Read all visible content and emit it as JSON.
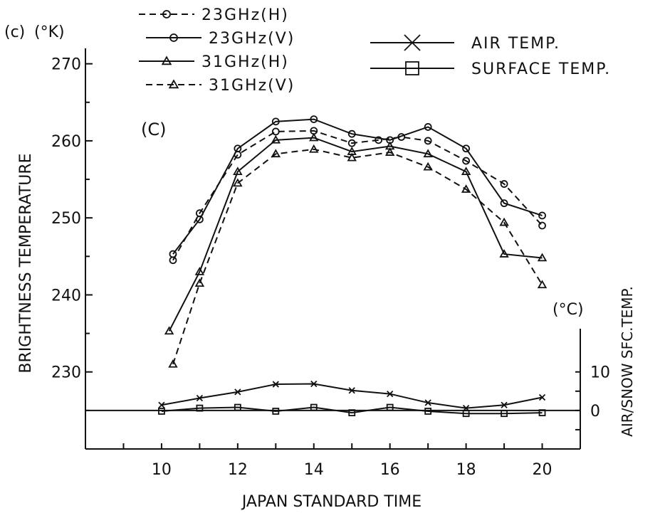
{
  "chart_data": {
    "type": "line",
    "panel_label": "(c)",
    "left_unit": "(°K)",
    "inner_label": "(C)",
    "xlabel": "JAPAN STANDARD TIME",
    "ylabel": "BRIGHTNESS TEMPERATURE",
    "y2label": "AIR/SNOW SFC.TEMP.",
    "y2unit": "(°C)",
    "xlim": [
      8,
      21
    ],
    "ylim": [
      220,
      272
    ],
    "x_ticks": [
      10,
      12,
      14,
      16,
      18,
      20
    ],
    "x_tick_labels": [
      "10",
      "12",
      "14",
      "16",
      "18",
      "20"
    ],
    "y_ticks": [
      230,
      240,
      250,
      260,
      270
    ],
    "y_tick_labels": [
      "230",
      "240",
      "250",
      "260",
      "270"
    ],
    "y2_axis": {
      "zero_at": 225,
      "scale": 0.5,
      "ticks": [
        0,
        10
      ],
      "tick_labels": [
        "0",
        "10"
      ]
    },
    "series": [
      {
        "name": "23GHz(H)",
        "axis": "left",
        "line": "dashed",
        "marker": "circle-open",
        "x": [
          10.3,
          11,
          12,
          13,
          14,
          15,
          15.7,
          16.3,
          17,
          18,
          19,
          20
        ],
        "y": [
          244.5,
          250.6,
          258.2,
          261.2,
          261.3,
          259.7,
          260.1,
          260.5,
          260.0,
          257.4,
          254.4,
          249.0
        ]
      },
      {
        "name": "23GHz(V)",
        "axis": "left",
        "line": "solid",
        "marker": "circle-filled",
        "x": [
          10.3,
          11,
          12,
          13,
          14,
          15,
          16,
          17,
          18,
          19,
          20
        ],
        "y": [
          245.3,
          249.8,
          259.0,
          262.5,
          262.8,
          260.9,
          260.1,
          261.8,
          259.0,
          251.9,
          250.3
        ]
      },
      {
        "name": "31GHz(H)",
        "axis": "left",
        "line": "solid",
        "marker": "triangle-open",
        "x": [
          10.2,
          11,
          12,
          13,
          14,
          15,
          16,
          17,
          18,
          19,
          20
        ],
        "y": [
          235.3,
          243.0,
          256.0,
          260.1,
          260.4,
          258.6,
          259.3,
          258.3,
          256.0,
          245.3,
          244.8
        ]
      },
      {
        "name": "31GHz(V)",
        "axis": "left",
        "line": "dashed",
        "marker": "triangle-filled",
        "x": [
          10.3,
          11,
          12,
          13,
          14,
          15,
          16,
          17,
          18,
          19,
          20
        ],
        "y": [
          231.0,
          241.5,
          254.5,
          258.3,
          258.9,
          257.8,
          258.5,
          256.6,
          253.7,
          249.4,
          241.3
        ]
      },
      {
        "name": "AIR TEMP.",
        "axis": "right",
        "line": "solid",
        "marker": "cross",
        "x": [
          10,
          11,
          12,
          13,
          14,
          15,
          16,
          17,
          18,
          19,
          20
        ],
        "y": [
          1.4,
          3.2,
          4.8,
          6.8,
          6.9,
          5.2,
          4.3,
          2.0,
          0.6,
          1.4,
          3.4
        ]
      },
      {
        "name": "SURFACE TEMP.",
        "axis": "right",
        "line": "solid",
        "marker": "square-open",
        "x": [
          10,
          11,
          12,
          13,
          14,
          15,
          16,
          17,
          18,
          19,
          20
        ],
        "y": [
          -0.2,
          0.6,
          0.8,
          -0.2,
          0.8,
          -0.6,
          0.8,
          -0.2,
          -0.8,
          -0.8,
          -0.6
        ]
      }
    ],
    "reference_line": {
      "y": 225
    },
    "grid": false,
    "legend": {
      "placement": "top",
      "left_group": [
        "23GHz(H)",
        "23GHz(V)",
        "31GHz(H)",
        "31GHz(V)"
      ],
      "right_group": [
        "AIR TEMP.",
        "SURFACE TEMP."
      ]
    }
  }
}
